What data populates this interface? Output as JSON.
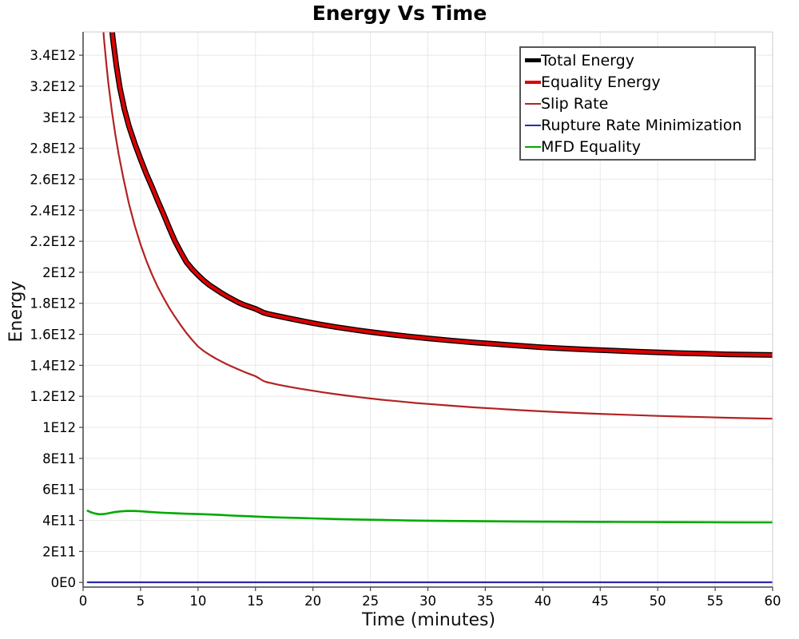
{
  "title": "Energy Vs Time",
  "axes": {
    "x_label": "Time (minutes)",
    "y_label": "Energy",
    "x_ticks": [
      {
        "v": 0,
        "label": "0"
      },
      {
        "v": 5,
        "label": "5"
      },
      {
        "v": 10,
        "label": "10"
      },
      {
        "v": 15,
        "label": "15"
      },
      {
        "v": 20,
        "label": "20"
      },
      {
        "v": 25,
        "label": "25"
      },
      {
        "v": 30,
        "label": "30"
      },
      {
        "v": 35,
        "label": "35"
      },
      {
        "v": 40,
        "label": "40"
      },
      {
        "v": 45,
        "label": "45"
      },
      {
        "v": 50,
        "label": "50"
      },
      {
        "v": 55,
        "label": "55"
      },
      {
        "v": 60,
        "label": "60"
      }
    ],
    "y_ticks": [
      {
        "v": 0.0,
        "label": "0E0"
      },
      {
        "v": 0.2,
        "label": "2E11"
      },
      {
        "v": 0.4,
        "label": "4E11"
      },
      {
        "v": 0.6,
        "label": "6E11"
      },
      {
        "v": 0.8,
        "label": "8E11"
      },
      {
        "v": 1.0,
        "label": "1E12"
      },
      {
        "v": 1.2,
        "label": "1.2E12"
      },
      {
        "v": 1.4,
        "label": "1.4E12"
      },
      {
        "v": 1.6,
        "label": "1.6E12"
      },
      {
        "v": 1.8,
        "label": "1.8E12"
      },
      {
        "v": 2.0,
        "label": "2E12"
      },
      {
        "v": 2.2,
        "label": "2.2E12"
      },
      {
        "v": 2.4,
        "label": "2.4E12"
      },
      {
        "v": 2.6,
        "label": "2.6E12"
      },
      {
        "v": 2.8,
        "label": "2.8E12"
      },
      {
        "v": 3.0,
        "label": "3E12"
      },
      {
        "v": 3.2,
        "label": "3.2E12"
      },
      {
        "v": 3.4,
        "label": "3.4E12"
      }
    ]
  },
  "colors": {
    "grid": "#e8e8e8",
    "frame": "#cccccc",
    "axis": "#444444",
    "tick_text": "#000000",
    "legend_border": "#555555"
  },
  "chart_data": {
    "type": "line",
    "title": "Energy Vs Time",
    "xlabel": "Time (minutes)",
    "ylabel": "Energy",
    "xlim": [
      0,
      60
    ],
    "ylim": [
      -30000000000.0,
      3550000000000.0
    ],
    "grid": true,
    "legend_position": "top-right",
    "value_unit": 1000000000000.0,
    "series": [
      {
        "name": "Total Energy",
        "color": "#000000",
        "width": 7,
        "points": [
          [
            2.3,
            3.72
          ],
          [
            2.6,
            3.5
          ],
          [
            2.9,
            3.33
          ],
          [
            3.2,
            3.19
          ],
          [
            3.6,
            3.05
          ],
          [
            4,
            2.94
          ],
          [
            4.5,
            2.83
          ],
          [
            5,
            2.73
          ],
          [
            5.5,
            2.635
          ],
          [
            6,
            2.55
          ],
          [
            6.5,
            2.46
          ],
          [
            7,
            2.375
          ],
          [
            7.5,
            2.285
          ],
          [
            8,
            2.2
          ],
          [
            8.5,
            2.13
          ],
          [
            9,
            2.065
          ],
          [
            9.5,
            2.02
          ],
          [
            10,
            1.982
          ],
          [
            10.5,
            1.947
          ],
          [
            11,
            1.917
          ],
          [
            11.5,
            1.893
          ],
          [
            12,
            1.868
          ],
          [
            12.5,
            1.846
          ],
          [
            13,
            1.826
          ],
          [
            13.5,
            1.806
          ],
          [
            14,
            1.79
          ],
          [
            14.5,
            1.777
          ],
          [
            15,
            1.764
          ],
          [
            15.3,
            1.754
          ],
          [
            15.7,
            1.74
          ],
          [
            16,
            1.733
          ],
          [
            16.5,
            1.725
          ],
          [
            17,
            1.717
          ],
          [
            18,
            1.702
          ],
          [
            19,
            1.687
          ],
          [
            20,
            1.672
          ],
          [
            21,
            1.659
          ],
          [
            22,
            1.647
          ],
          [
            23,
            1.636
          ],
          [
            24,
            1.625
          ],
          [
            25,
            1.615
          ],
          [
            26,
            1.606
          ],
          [
            27,
            1.597
          ],
          [
            28,
            1.589
          ],
          [
            29,
            1.581
          ],
          [
            30,
            1.574
          ],
          [
            32,
            1.56
          ],
          [
            34,
            1.548
          ],
          [
            36,
            1.537
          ],
          [
            38,
            1.526
          ],
          [
            40,
            1.516
          ],
          [
            42,
            1.508
          ],
          [
            44,
            1.501
          ],
          [
            46,
            1.495
          ],
          [
            48,
            1.489
          ],
          [
            50,
            1.484
          ],
          [
            52,
            1.479
          ],
          [
            54,
            1.475
          ],
          [
            56,
            1.471
          ],
          [
            58,
            1.469
          ],
          [
            60,
            1.467
          ]
        ]
      },
      {
        "name": "Equality Energy",
        "color": "#dd0000",
        "width": 4.2,
        "points": [
          [
            2.3,
            3.72
          ],
          [
            2.6,
            3.5
          ],
          [
            2.9,
            3.33
          ],
          [
            3.2,
            3.19
          ],
          [
            3.6,
            3.05
          ],
          [
            4,
            2.94
          ],
          [
            4.5,
            2.83
          ],
          [
            5,
            2.73
          ],
          [
            5.5,
            2.635
          ],
          [
            6,
            2.55
          ],
          [
            6.5,
            2.46
          ],
          [
            7,
            2.375
          ],
          [
            7.5,
            2.285
          ],
          [
            8,
            2.2
          ],
          [
            8.5,
            2.13
          ],
          [
            9,
            2.065
          ],
          [
            9.5,
            2.02
          ],
          [
            10,
            1.982
          ],
          [
            10.5,
            1.947
          ],
          [
            11,
            1.917
          ],
          [
            11.5,
            1.893
          ],
          [
            12,
            1.868
          ],
          [
            12.5,
            1.846
          ],
          [
            13,
            1.826
          ],
          [
            13.5,
            1.806
          ],
          [
            14,
            1.79
          ],
          [
            14.5,
            1.777
          ],
          [
            15,
            1.764
          ],
          [
            15.3,
            1.754
          ],
          [
            15.7,
            1.74
          ],
          [
            16,
            1.733
          ],
          [
            16.5,
            1.725
          ],
          [
            17,
            1.717
          ],
          [
            18,
            1.702
          ],
          [
            19,
            1.687
          ],
          [
            20,
            1.672
          ],
          [
            21,
            1.659
          ],
          [
            22,
            1.647
          ],
          [
            23,
            1.636
          ],
          [
            24,
            1.625
          ],
          [
            25,
            1.615
          ],
          [
            26,
            1.606
          ],
          [
            27,
            1.597
          ],
          [
            28,
            1.589
          ],
          [
            29,
            1.581
          ],
          [
            30,
            1.574
          ],
          [
            32,
            1.56
          ],
          [
            34,
            1.548
          ],
          [
            36,
            1.537
          ],
          [
            38,
            1.526
          ],
          [
            40,
            1.516
          ],
          [
            42,
            1.508
          ],
          [
            44,
            1.501
          ],
          [
            46,
            1.495
          ],
          [
            48,
            1.489
          ],
          [
            50,
            1.484
          ],
          [
            52,
            1.479
          ],
          [
            54,
            1.475
          ],
          [
            56,
            1.471
          ],
          [
            58,
            1.469
          ],
          [
            60,
            1.467
          ]
        ]
      },
      {
        "name": "Slip Rate",
        "color": "#b22222",
        "width": 2.2,
        "points": [
          [
            1.6,
            3.75
          ],
          [
            1.8,
            3.52
          ],
          [
            2,
            3.36
          ],
          [
            2.2,
            3.22
          ],
          [
            2.5,
            3.04
          ],
          [
            2.8,
            2.89
          ],
          [
            3.1,
            2.76
          ],
          [
            3.5,
            2.61
          ],
          [
            4,
            2.44
          ],
          [
            4.5,
            2.3
          ],
          [
            5,
            2.18
          ],
          [
            5.5,
            2.075
          ],
          [
            6,
            1.985
          ],
          [
            6.5,
            1.905
          ],
          [
            7,
            1.835
          ],
          [
            7.5,
            1.77
          ],
          [
            8,
            1.712
          ],
          [
            8.5,
            1.658
          ],
          [
            9,
            1.608
          ],
          [
            9.5,
            1.563
          ],
          [
            10,
            1.522
          ],
          [
            10.5,
            1.492
          ],
          [
            11,
            1.468
          ],
          [
            11.5,
            1.446
          ],
          [
            12,
            1.426
          ],
          [
            12.5,
            1.407
          ],
          [
            13,
            1.39
          ],
          [
            13.5,
            1.374
          ],
          [
            14,
            1.358
          ],
          [
            14.5,
            1.344
          ],
          [
            15,
            1.33
          ],
          [
            15.3,
            1.317
          ],
          [
            15.7,
            1.299
          ],
          [
            16,
            1.291
          ],
          [
            16.5,
            1.283
          ],
          [
            17,
            1.275
          ],
          [
            18,
            1.261
          ],
          [
            19,
            1.248
          ],
          [
            20,
            1.236
          ],
          [
            21,
            1.225
          ],
          [
            22,
            1.214
          ],
          [
            23,
            1.204
          ],
          [
            24,
            1.195
          ],
          [
            25,
            1.186
          ],
          [
            26,
            1.178
          ],
          [
            27,
            1.171
          ],
          [
            28,
            1.164
          ],
          [
            29,
            1.157
          ],
          [
            30,
            1.151
          ],
          [
            32,
            1.14
          ],
          [
            34,
            1.129
          ],
          [
            36,
            1.12
          ],
          [
            38,
            1.111
          ],
          [
            40,
            1.103
          ],
          [
            42,
            1.096
          ],
          [
            44,
            1.09
          ],
          [
            46,
            1.084
          ],
          [
            48,
            1.079
          ],
          [
            50,
            1.074
          ],
          [
            52,
            1.07
          ],
          [
            54,
            1.066
          ],
          [
            56,
            1.062
          ],
          [
            58,
            1.059
          ],
          [
            60,
            1.056
          ]
        ]
      },
      {
        "name": "Rupture Rate Minimization",
        "color": "#2a2aaa",
        "width": 2.2,
        "points": [
          [
            0.4,
            0.001
          ],
          [
            10,
            0.001
          ],
          [
            20,
            0.001
          ],
          [
            30,
            0.001
          ],
          [
            40,
            0.001
          ],
          [
            50,
            0.001
          ],
          [
            60,
            0.001
          ]
        ]
      },
      {
        "name": "MFD Equality",
        "color": "#00aa00",
        "width": 2.6,
        "points": [
          [
            0.4,
            0.462
          ],
          [
            0.7,
            0.452
          ],
          [
            1,
            0.445
          ],
          [
            1.4,
            0.44
          ],
          [
            1.8,
            0.441
          ],
          [
            2.2,
            0.446
          ],
          [
            2.7,
            0.453
          ],
          [
            3.2,
            0.458
          ],
          [
            3.8,
            0.461
          ],
          [
            4.4,
            0.461
          ],
          [
            5,
            0.459
          ],
          [
            6,
            0.453
          ],
          [
            7,
            0.449
          ],
          [
            8,
            0.446
          ],
          [
            9,
            0.443
          ],
          [
            10,
            0.441
          ],
          [
            11,
            0.438
          ],
          [
            12,
            0.435
          ],
          [
            13,
            0.431
          ],
          [
            14,
            0.428
          ],
          [
            15,
            0.425
          ],
          [
            16,
            0.422
          ],
          [
            17,
            0.419
          ],
          [
            18,
            0.417
          ],
          [
            19,
            0.415
          ],
          [
            20,
            0.413
          ],
          [
            22,
            0.409
          ],
          [
            24,
            0.406
          ],
          [
            26,
            0.403
          ],
          [
            28,
            0.4
          ],
          [
            30,
            0.398
          ],
          [
            33,
            0.396
          ],
          [
            36,
            0.394
          ],
          [
            40,
            0.392
          ],
          [
            44,
            0.391
          ],
          [
            48,
            0.39
          ],
          [
            52,
            0.389
          ],
          [
            56,
            0.388
          ],
          [
            60,
            0.387
          ]
        ]
      }
    ]
  },
  "legend": {
    "items": [
      {
        "label": "Total Energy",
        "color": "#000000",
        "thickness": 5
      },
      {
        "label": "Equality Energy",
        "color": "#dd0000",
        "thickness": 4
      },
      {
        "label": "Slip Rate",
        "color": "#b22222",
        "thickness": 2
      },
      {
        "label": "Rupture Rate Minimization",
        "color": "#2a2aaa",
        "thickness": 2
      },
      {
        "label": "MFD Equality",
        "color": "#00aa00",
        "thickness": 2
      }
    ]
  }
}
